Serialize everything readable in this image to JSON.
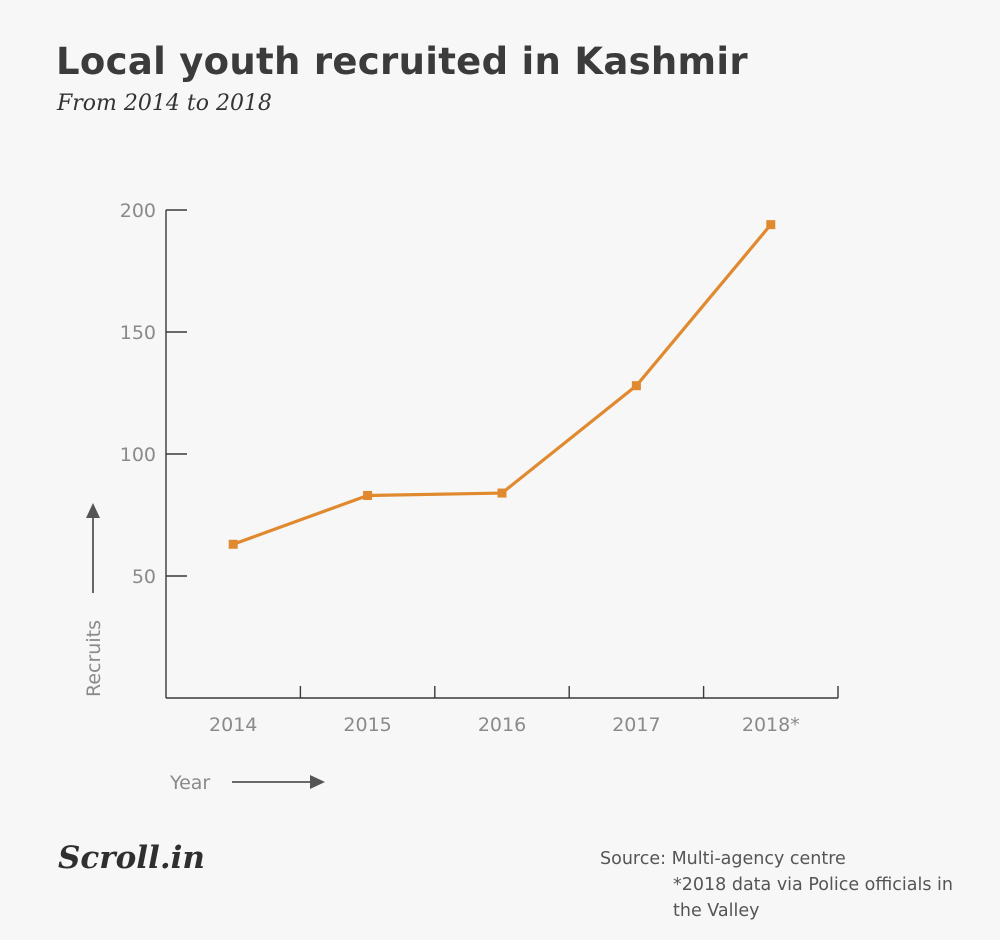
{
  "header": {
    "title": "Local youth recruited in Kashmir",
    "subtitle": "From 2014 to 2018"
  },
  "chart_data": {
    "type": "line",
    "categories": [
      "2014",
      "2015",
      "2016",
      "2017",
      "2018*"
    ],
    "series": [
      {
        "values": [
          63,
          83,
          84,
          128,
          194
        ]
      }
    ],
    "ylabel": "Recruits",
    "xlabel": "Year",
    "ylim": [
      0,
      200
    ],
    "yticks": [
      50,
      100,
      150,
      200
    ],
    "grid": false,
    "line_color": "#e0892f"
  },
  "footer": {
    "logo_text": "Scroll.in",
    "source": "Source: Multi-agency centre",
    "note": "*2018 data via Police officials in the Valley"
  },
  "colors": {
    "background": "#f7f7f7",
    "axis": "#3a3a3a",
    "tick_label": "#8a8a8a",
    "line": "#e0892f"
  }
}
